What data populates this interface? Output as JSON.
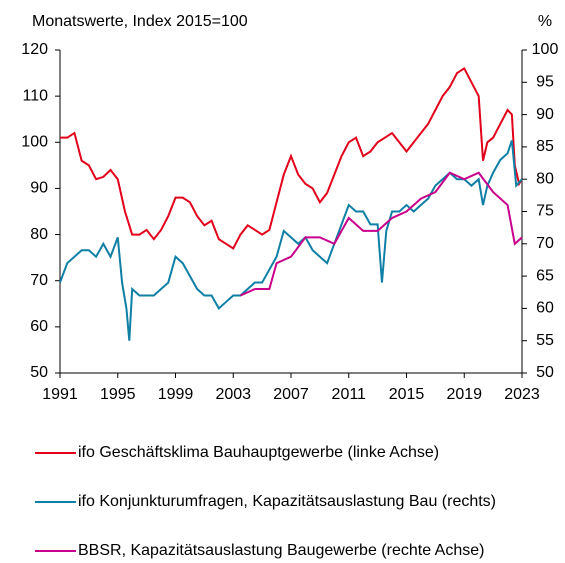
{
  "chart_data": {
    "type": "line",
    "title": "Monatswerte, Index 2015=100",
    "y2_label": "%",
    "xlim": [
      1991,
      2023
    ],
    "xticks": [
      1991,
      1995,
      1999,
      2003,
      2007,
      2011,
      2015,
      2019,
      2023
    ],
    "ylim": [
      50,
      120
    ],
    "yticks": [
      50,
      60,
      70,
      80,
      90,
      100,
      110,
      120
    ],
    "y2lim": [
      50,
      100
    ],
    "y2ticks": [
      50,
      55,
      60,
      65,
      70,
      75,
      80,
      85,
      90,
      95,
      100
    ],
    "series": [
      {
        "name": "ifo Geschäftsklima Bauhauptgewerbe (linke Achse)",
        "color": "#e2001a",
        "x": [
          1991,
          1991.5,
          1992,
          1992.5,
          1993,
          1993.5,
          1994,
          1994.5,
          1995,
          1995.5,
          1996,
          1996.5,
          1997,
          1997.5,
          1998,
          1998.5,
          1999,
          1999.5,
          2000,
          2000.5,
          2001,
          2001.5,
          2002,
          2002.5,
          2003,
          2003.5,
          2004,
          2004.5,
          2005,
          2005.5,
          2006,
          2006.5,
          2007,
          2007.5,
          2008,
          2008.5,
          2009,
          2009.5,
          2010,
          2010.5,
          2011,
          2011.5,
          2012,
          2012.5,
          2013,
          2013.5,
          2014,
          2014.5,
          2015,
          2015.5,
          2016,
          2016.5,
          2017,
          2017.5,
          2018,
          2018.5,
          2019,
          2019.5,
          2020,
          2020.3,
          2020.6,
          2021,
          2021.5,
          2022,
          2022.3,
          2022.5,
          2022.8,
          2023
        ],
        "values": [
          101,
          101,
          102,
          96,
          95,
          92,
          92.5,
          94,
          92,
          85,
          80,
          80,
          81,
          79,
          81,
          84,
          88,
          88,
          87,
          84,
          82,
          83,
          79,
          78,
          77,
          80,
          82,
          81,
          80,
          81,
          87,
          93,
          97,
          93,
          91,
          90,
          87,
          89,
          93,
          97,
          100,
          101,
          97,
          98,
          100,
          101,
          102,
          100,
          98,
          100,
          102,
          104,
          107,
          110,
          112,
          115,
          116,
          113,
          110,
          96,
          100,
          101,
          104,
          107,
          106,
          95,
          91,
          92
        ]
      },
      {
        "name": "ifo Konjunkturumfragen, Kapazitätsauslastung Bau (rechts)",
        "color": "#0f7fa6",
        "axis": "y2",
        "x": [
          1991,
          1991.5,
          1992,
          1992.5,
          1993,
          1993.5,
          1994,
          1994.5,
          1995,
          1995.3,
          1995.6,
          1995.8,
          1996,
          1996.5,
          1997,
          1997.5,
          1998,
          1998.5,
          1999,
          1999.5,
          2000,
          2000.5,
          2001,
          2001.5,
          2002,
          2002.5,
          2003,
          2003.5,
          2004,
          2004.5,
          2005,
          2005.5,
          2006,
          2006.5,
          2007,
          2007.5,
          2008,
          2008.5,
          2009,
          2009.5,
          2010,
          2010.5,
          2011,
          2011.5,
          2012,
          2012.5,
          2013,
          2013.3,
          2013.6,
          2014,
          2014.5,
          2015,
          2015.5,
          2016,
          2016.5,
          2017,
          2017.5,
          2018,
          2018.5,
          2019,
          2019.5,
          2020,
          2020.3,
          2020.6,
          2021,
          2021.5,
          2022,
          2022.3,
          2022.6,
          2023
        ],
        "values": [
          64,
          67,
          68,
          69,
          69,
          68,
          70,
          68,
          71,
          64,
          60,
          55,
          63,
          62,
          62,
          62,
          63,
          64,
          68,
          67,
          65,
          63,
          62,
          62,
          60,
          61,
          62,
          62,
          63,
          64,
          64,
          66,
          68,
          72,
          71,
          70,
          71,
          69,
          68,
          67,
          70,
          73,
          76,
          75,
          75,
          73,
          73,
          64,
          72,
          75,
          75,
          76,
          75,
          76,
          77,
          79,
          80,
          81,
          80,
          80,
          79,
          80,
          76,
          79,
          81,
          83,
          84,
          86,
          79,
          80
        ]
      },
      {
        "name": "BBSR, Kapazitätsauslastung Baugewerbe (rechte Achse)",
        "color": "#c8008c",
        "axis": "y2",
        "x": [
          2003.5,
          2004.5,
          2005.5,
          2006,
          2007,
          2008,
          2009,
          2010,
          2011,
          2012,
          2013,
          2014,
          2015,
          2016,
          2017,
          2018,
          2019,
          2020,
          2021,
          2022,
          2022.5,
          2023
        ],
        "values": [
          62,
          63,
          63,
          67,
          68,
          71,
          71,
          70,
          74,
          72,
          72,
          74,
          75,
          77,
          78,
          81,
          80,
          81,
          78,
          76,
          70,
          71
        ]
      }
    ]
  }
}
